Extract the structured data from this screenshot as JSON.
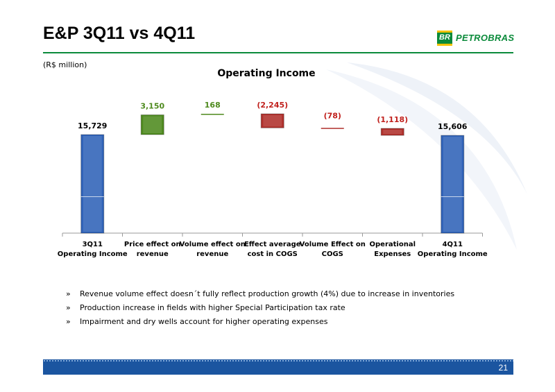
{
  "header": {
    "title": "E&P 3Q11 vs 4Q11",
    "logo_text": "PETROBRAS",
    "logo_mark_text": "BR",
    "unit_label": "(R$ million)"
  },
  "chart_data": {
    "type": "bar",
    "title": "Operating Income",
    "categories": [
      [
        "3Q11",
        "Operating Income"
      ],
      [
        "Price effect on",
        "revenue"
      ],
      [
        "Volume effect on",
        "revenue"
      ],
      [
        "Effect average",
        "cost in COGS"
      ],
      [
        "Volume Effect on",
        "COGS"
      ],
      [
        "Operational",
        "Expenses"
      ],
      [
        "4Q11",
        "Operating Income"
      ]
    ],
    "values": [
      15729,
      3150,
      168,
      -2245,
      -78,
      -1118,
      15606
    ],
    "value_labels": [
      "15,729",
      "3,150",
      "168",
      "(2,245)",
      "(78)",
      "(1,118)",
      "15,606"
    ],
    "kinds": [
      "total",
      "change",
      "change",
      "change",
      "change",
      "change",
      "total"
    ],
    "colors": {
      "total": "#2f62b8",
      "increase": "#4e8a1e",
      "decrease": "#b0302c",
      "increase_label": "#4e8a1e",
      "decrease_label": "#c0201c"
    }
  },
  "bullets": {
    "marker": "»",
    "items": [
      "Revenue volume effect  doesn´t fully reflect production growth (4%) due to increase in inventories",
      "Production increase in fields with higher Special Participation tax rate",
      "Impairment and dry wells account for higher operating expenses"
    ]
  },
  "footer": {
    "page_number": "21"
  }
}
